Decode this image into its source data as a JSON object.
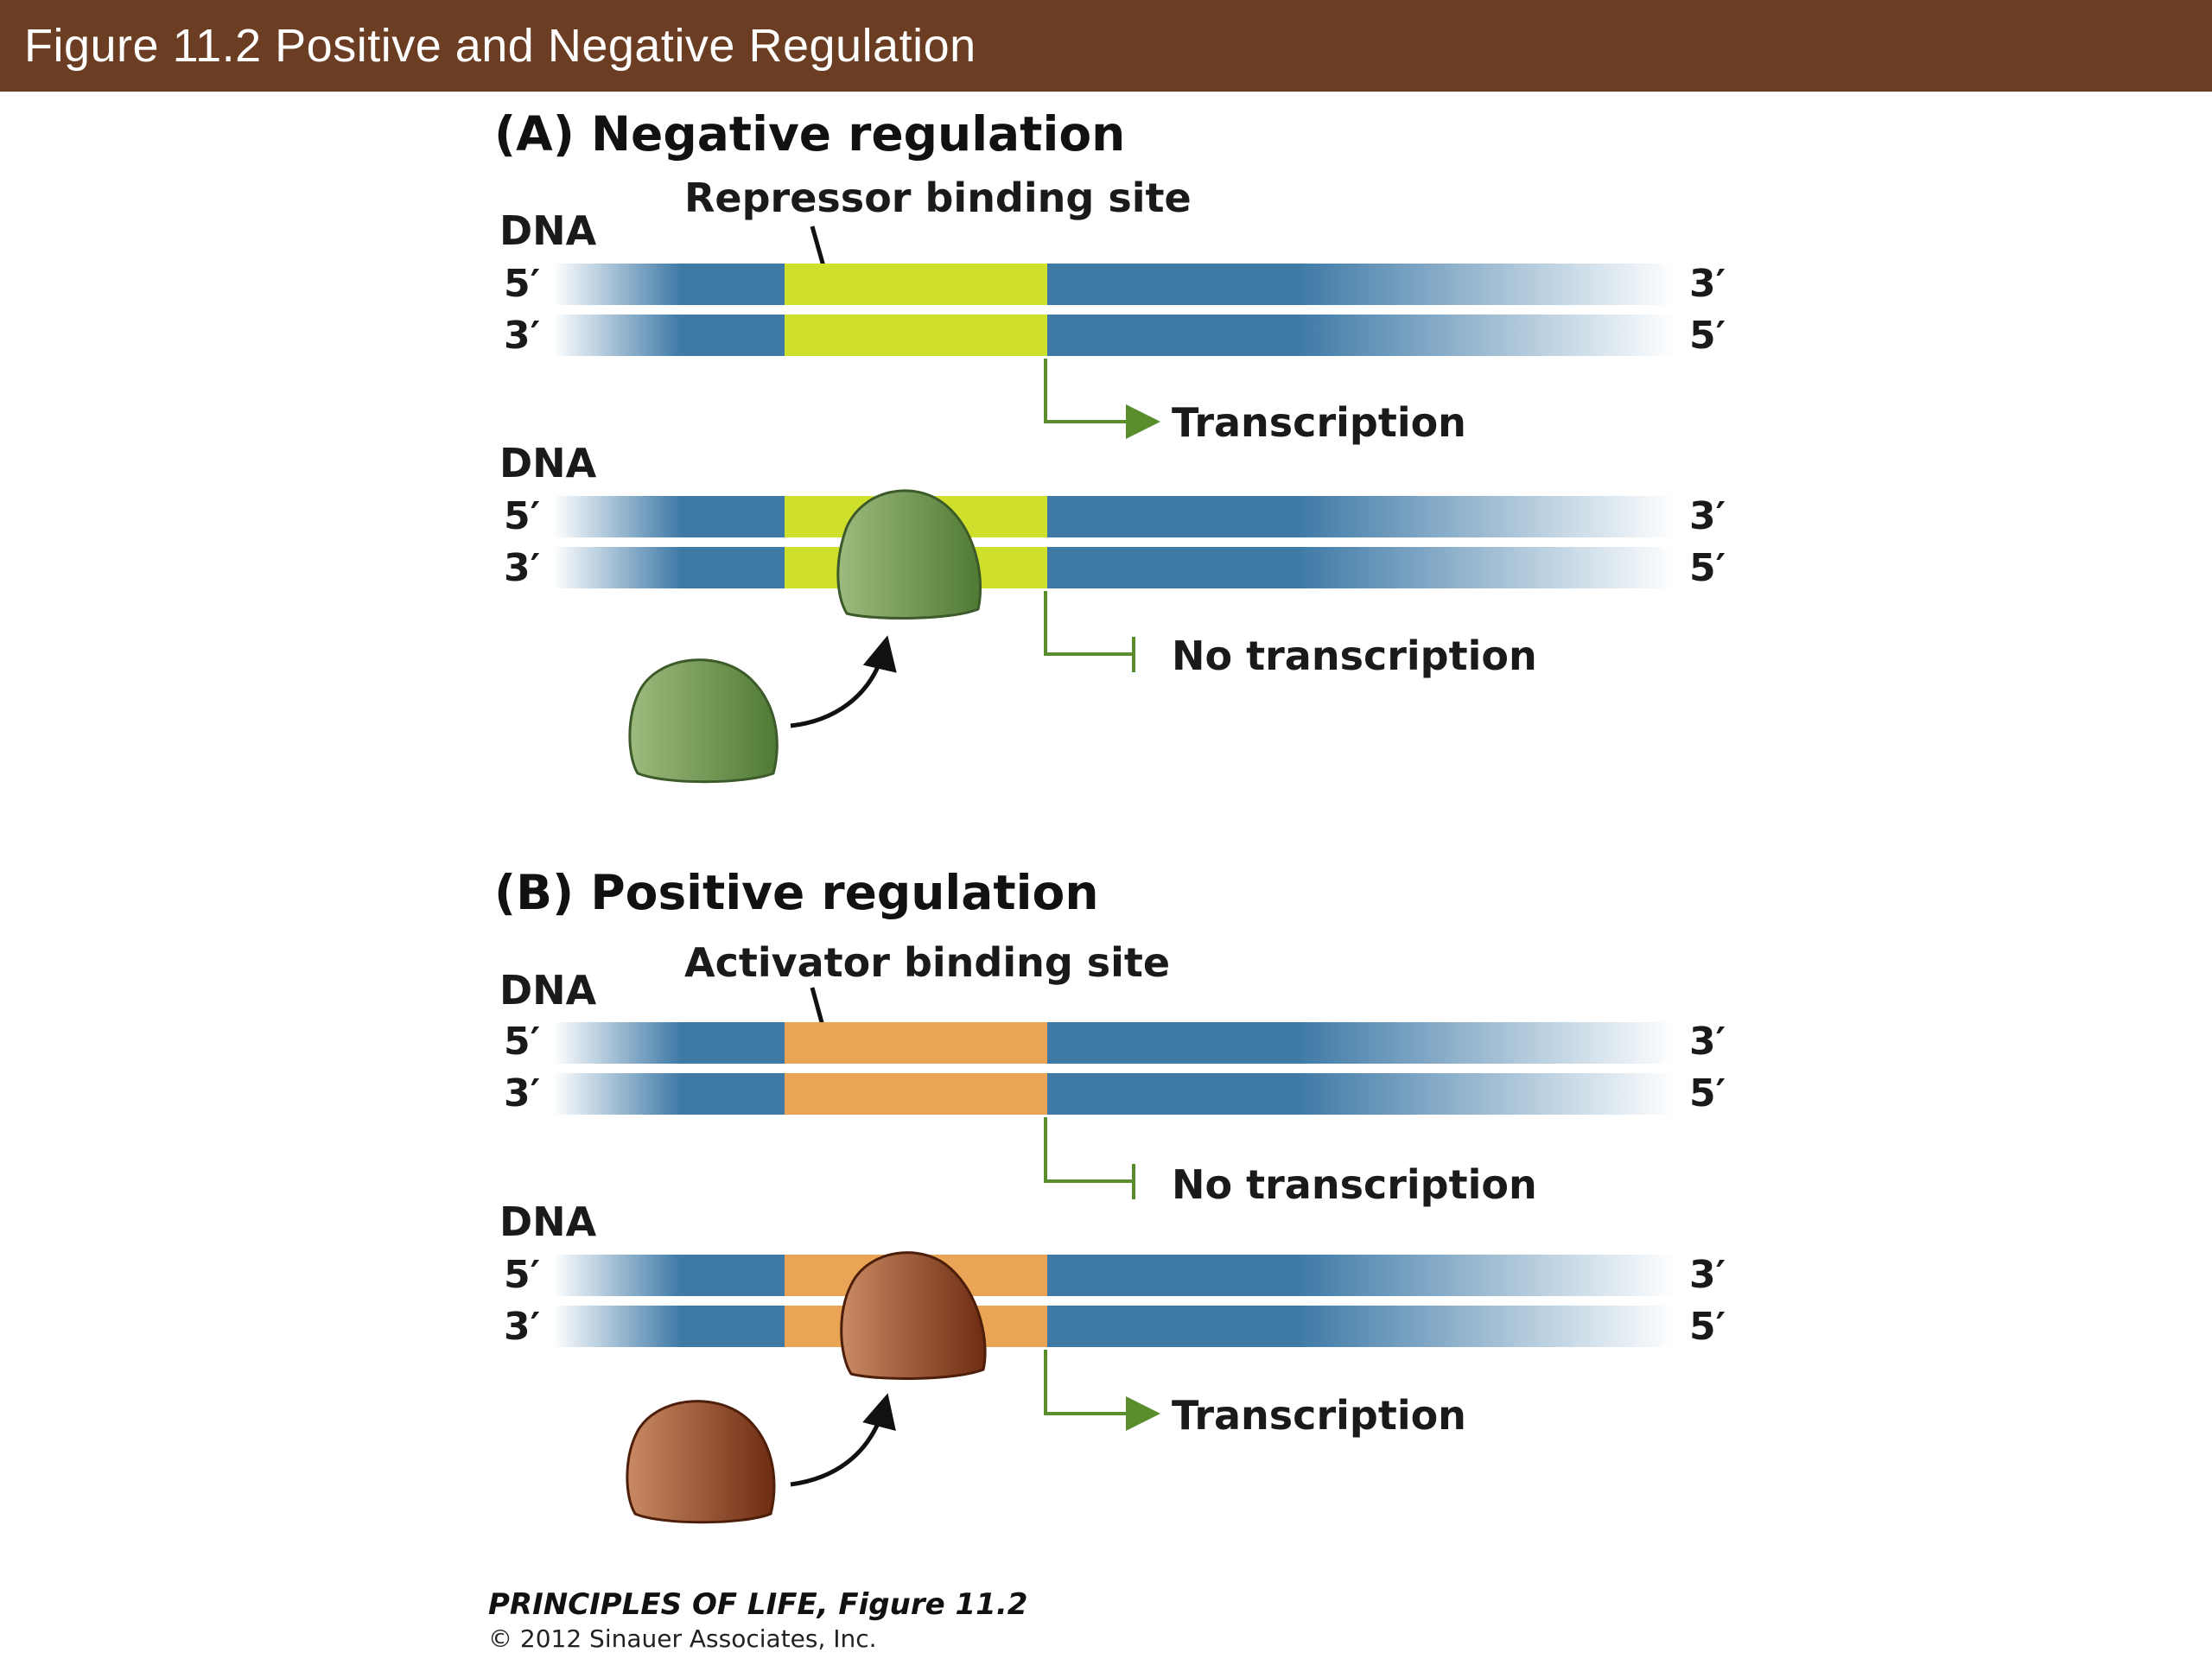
{
  "header": {
    "title": "Figure 11.2  Positive and Negative Regulation"
  },
  "colors": {
    "header_bg": "#6b3d22",
    "dna_strand": "#3f7aa7",
    "repressor_site": "#cfe02c",
    "activator_site": "#eaa456",
    "repressor_protein": "#6f9650",
    "activator_protein": "#8a3e1f",
    "transcription_arrow": "#5a8e2c"
  },
  "panel_a": {
    "title": "(A)  Negative regulation",
    "site_label": "Repressor binding site",
    "top": {
      "dna_label": "DNA",
      "left_top": "5′",
      "left_bottom": "3′",
      "right_top": "3′",
      "right_bottom": "5′",
      "outcome": "Transcription"
    },
    "bottom": {
      "dna_label": "DNA",
      "left_top": "5′",
      "left_bottom": "3′",
      "right_top": "3′",
      "right_bottom": "5′",
      "outcome": "No transcription"
    }
  },
  "panel_b": {
    "title": "(B)  Positive regulation",
    "site_label": "Activator binding site",
    "top": {
      "dna_label": "DNA",
      "left_top": "5′",
      "left_bottom": "3′",
      "right_top": "3′",
      "right_bottom": "5′",
      "outcome": "No transcription"
    },
    "bottom": {
      "dna_label": "DNA",
      "left_top": "5′",
      "left_bottom": "3′",
      "right_top": "3′",
      "right_bottom": "5′",
      "outcome": "Transcription"
    }
  },
  "credit": {
    "source": "PRINCIPLES OF LIFE, Figure 11.2",
    "copyright": "© 2012 Sinauer Associates, Inc."
  }
}
